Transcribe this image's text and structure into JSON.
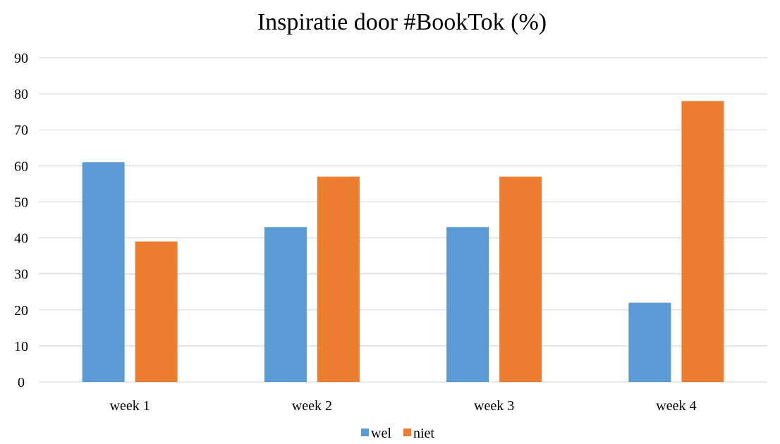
{
  "chart_data": {
    "type": "bar",
    "title": "Inspiratie door #BookTok (%)",
    "xlabel": "",
    "ylabel": "",
    "categories": [
      "week 1",
      "week 2",
      "week 3",
      "week 4"
    ],
    "series": [
      {
        "name": "wel",
        "values": [
          61,
          43,
          43,
          22
        ],
        "color": "#5B9BD5"
      },
      {
        "name": "niet",
        "values": [
          39,
          57,
          57,
          78
        ],
        "color": "#ED7D31"
      }
    ],
    "ylim": [
      0,
      90
    ],
    "yticks": [
      0,
      10,
      20,
      30,
      40,
      50,
      60,
      70,
      80,
      90
    ],
    "grid": true,
    "legend": "bottom-center",
    "gridline_color": "#D9D9D9"
  }
}
